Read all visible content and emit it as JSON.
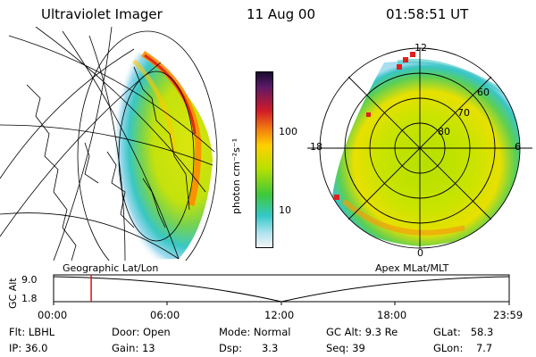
{
  "header": {
    "title": "Ultraviolet Imager",
    "date": "11 Aug 00",
    "time": "01:58:51 UT"
  },
  "left_panel": {
    "caption": "Geographic Lat/Lon"
  },
  "right_panel": {
    "caption": "Apex  MLat/MLT",
    "mlt_labels": [
      "12",
      "18",
      "6",
      "0"
    ],
    "lat_labels": [
      "60",
      "70",
      "80"
    ]
  },
  "colorbar": {
    "unit_label": "photon cm⁻²s⁻¹",
    "ticks": [
      "100",
      "10"
    ],
    "colors": [
      "#1a0b2e",
      "#5a1a66",
      "#d01a2a",
      "#f07a10",
      "#ffd000",
      "#b8e000",
      "#3ec83c",
      "#35c8c8",
      "#b0e4f0",
      "#f4f4f4"
    ]
  },
  "timeline": {
    "y_axis_label": "GC Alt",
    "y_ticks": [
      "9.0",
      "1.8"
    ],
    "x_ticks": [
      "00:00",
      "06:00",
      "12:00",
      "18:00",
      "23:59"
    ],
    "marker_time": "01:58",
    "marker_fraction": 0.0825
  },
  "footer": {
    "rows": [
      [
        {
          "k": "Flt:",
          "v": "LBHL"
        },
        {
          "k": "Door:",
          "v": "Open"
        },
        {
          "k": "Mode:",
          "v": "Normal"
        },
        {
          "k": "GC Alt:",
          "v": "9.3 Re"
        },
        {
          "k": "GLat:",
          "v": "58.3"
        }
      ],
      [
        {
          "k": "IP:",
          "v": "36.0"
        },
        {
          "k": "Gain:",
          "v": "13"
        },
        {
          "k": "Dsp:",
          "v": "3.3"
        },
        {
          "k": "Seq:",
          "v": "39"
        },
        {
          "k": "GLon:",
          "v": "7.7"
        }
      ]
    ]
  }
}
